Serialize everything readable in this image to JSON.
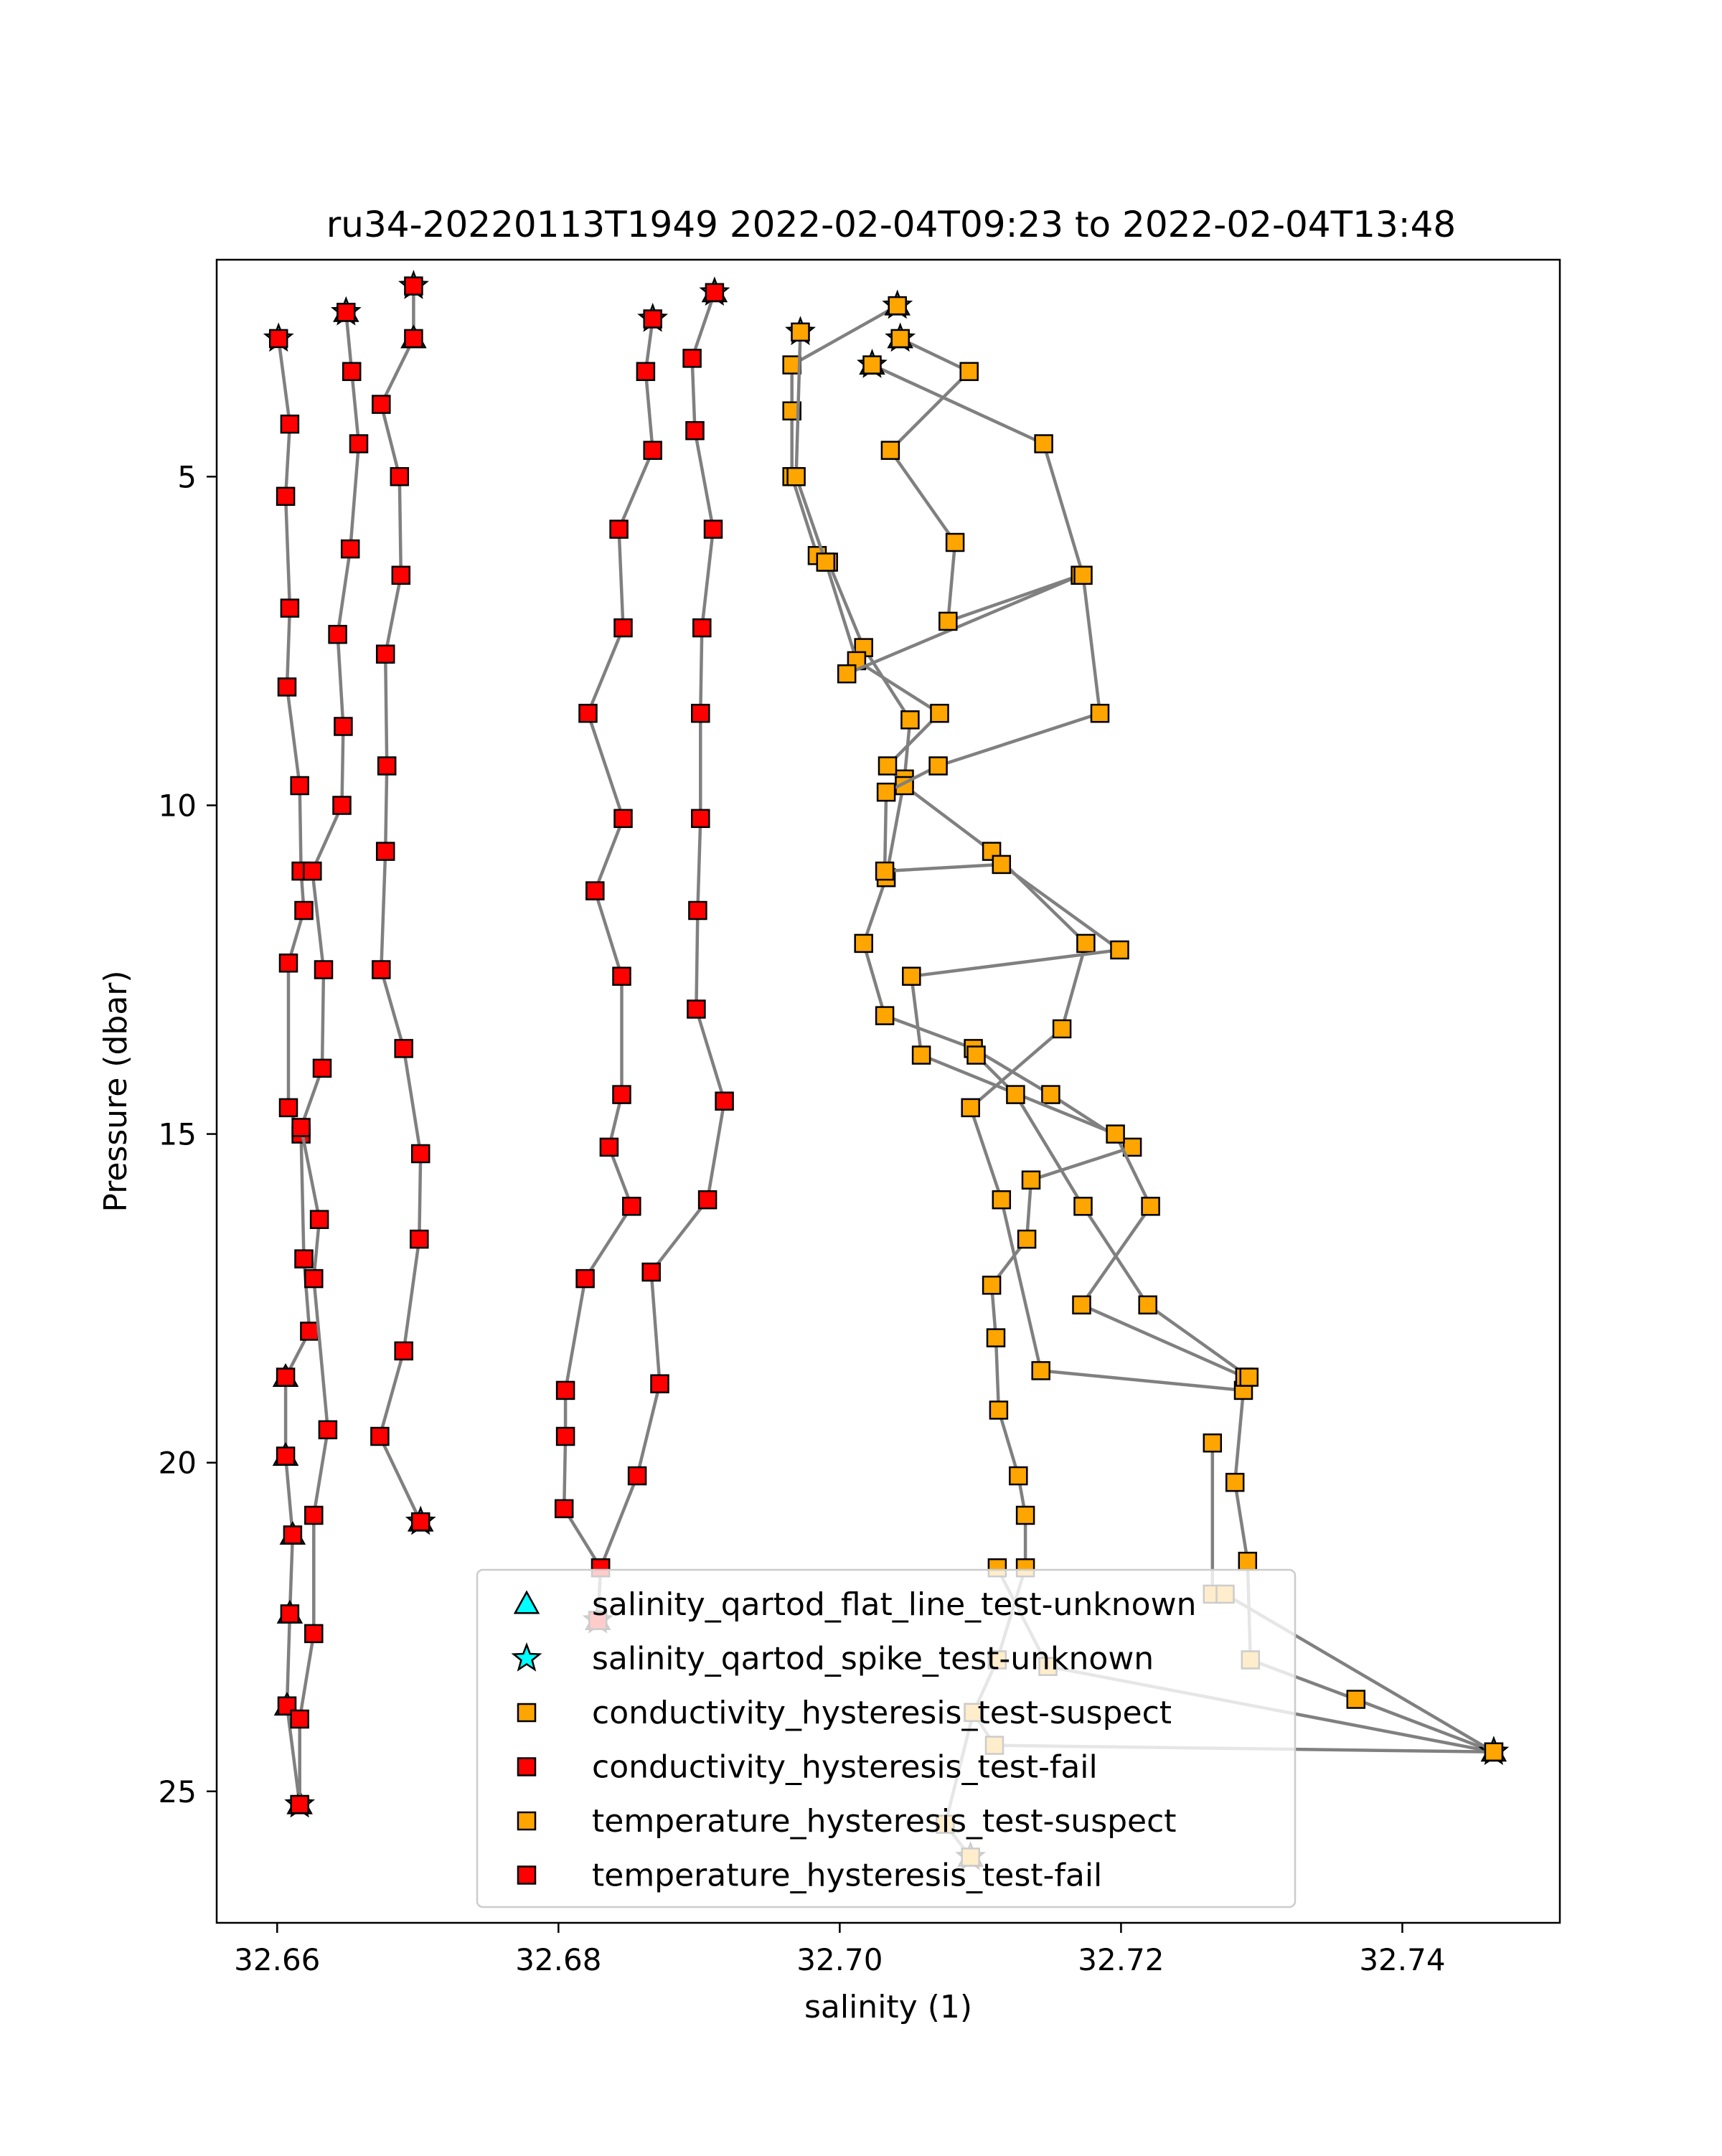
{
  "chart_data": {
    "type": "scatter",
    "title": "ru34-20220113T1949 2022-02-04T09:23 to 2022-02-04T13:48",
    "xlabel": "salinity (1)",
    "ylabel": "Pressure (dbar)",
    "xlim": [
      32.6557,
      32.7512
    ],
    "ylim": [
      27.0,
      1.7
    ],
    "y_inverted": true,
    "grid": false,
    "xticks": [
      32.66,
      32.68,
      32.7,
      32.72,
      32.74
    ],
    "xtick_labels": [
      "32.66",
      "32.68",
      "32.70",
      "32.72",
      "32.74"
    ],
    "yticks": [
      5,
      10,
      15,
      20,
      25
    ],
    "ytick_labels": [
      "5",
      "10",
      "15",
      "20",
      "25"
    ],
    "legend_position": "lower center",
    "line_color": "#808080",
    "colors": {
      "unknown_marker": "#00ffff",
      "suspect": "#ffa500",
      "fail": "#ff0000",
      "edge": "#000000"
    },
    "legend": [
      {
        "label": "salinity_qartod_flat_line_test-unknown",
        "marker": "triangle",
        "color": "#00ffff"
      },
      {
        "label": "salinity_qartod_spike_test-unknown",
        "marker": "star",
        "color": "#00ffff"
      },
      {
        "label": "conductivity_hysteresis_test-suspect",
        "marker": "square",
        "color": "#ffa500"
      },
      {
        "label": "conductivity_hysteresis_test-fail",
        "marker": "square",
        "color": "#ff0000"
      },
      {
        "label": "temperature_hysteresis_test-suspect",
        "marker": "square",
        "color": "#ffa500"
      },
      {
        "label": "temperature_hysteresis_test-fail",
        "marker": "square",
        "color": "#ff0000"
      }
    ],
    "profiles": [
      {
        "color": "#ff0000",
        "points": [
          [
            32.6601,
            2.9
          ],
          [
            32.6609,
            4.2
          ],
          [
            32.6606,
            5.3
          ],
          [
            32.6609,
            7.0
          ],
          [
            32.6607,
            8.2
          ],
          [
            32.6616,
            9.7
          ],
          [
            32.6617,
            11.0
          ],
          [
            32.6619,
            11.6
          ],
          [
            32.6608,
            12.4
          ],
          [
            32.6608,
            14.6
          ],
          [
            32.6617,
            15.0
          ],
          [
            32.6619,
            16.9
          ],
          [
            32.6623,
            18.0
          ],
          [
            32.6606,
            18.7
          ],
          [
            32.6606,
            19.9
          ],
          [
            32.6611,
            21.1
          ],
          [
            32.6609,
            22.3
          ],
          [
            32.6607,
            23.7
          ],
          [
            32.6616,
            25.2
          ]
        ],
        "markers_star": [
          [
            32.6601,
            2.9
          ],
          [
            32.6616,
            25.2
          ]
        ],
        "markers_triangle": [
          [
            32.6606,
            18.7
          ],
          [
            32.6606,
            19.9
          ],
          [
            32.6611,
            21.1
          ],
          [
            32.6609,
            22.3
          ],
          [
            32.6607,
            23.7
          ],
          [
            32.6616,
            25.2
          ]
        ]
      },
      {
        "color": "#ff0000",
        "points": [
          [
            32.6649,
            2.5
          ],
          [
            32.6653,
            3.4
          ],
          [
            32.6658,
            4.5
          ],
          [
            32.6652,
            6.1
          ],
          [
            32.6643,
            7.4
          ],
          [
            32.6647,
            8.8
          ],
          [
            32.6646,
            10.0
          ],
          [
            32.6625,
            11.0
          ],
          [
            32.6633,
            12.5
          ],
          [
            32.6632,
            14.0
          ],
          [
            32.6617,
            14.9
          ],
          [
            32.663,
            16.3
          ],
          [
            32.6626,
            17.2
          ],
          [
            32.6636,
            19.5
          ],
          [
            32.6626,
            20.8
          ],
          [
            32.6626,
            22.6
          ],
          [
            32.6616,
            23.9
          ],
          [
            32.6616,
            25.2
          ]
        ],
        "markers_star": [
          [
            32.6649,
            2.5
          ]
        ],
        "markers_triangle": [
          [
            32.6649,
            2.5
          ]
        ]
      },
      {
        "color": "#ff0000",
        "points": [
          [
            32.6697,
            2.1
          ],
          [
            32.6697,
            2.9
          ],
          [
            32.6674,
            3.9
          ],
          [
            32.6687,
            5.0
          ],
          [
            32.6688,
            6.5
          ],
          [
            32.6677,
            7.7
          ],
          [
            32.6678,
            9.4
          ],
          [
            32.6677,
            10.7
          ],
          [
            32.6674,
            12.5
          ],
          [
            32.669,
            13.7
          ],
          [
            32.6702,
            15.3
          ],
          [
            32.6701,
            16.6
          ],
          [
            32.669,
            18.3
          ],
          [
            32.6673,
            19.6
          ],
          [
            32.6702,
            20.9
          ]
        ],
        "markers_star": [
          [
            32.6697,
            2.1
          ],
          [
            32.6702,
            20.9
          ]
        ],
        "markers_triangle": [
          [
            32.6697,
            2.9
          ],
          [
            32.6702,
            20.9
          ]
        ]
      },
      {
        "color": "#ff0000",
        "points": [
          [
            32.6867,
            2.6
          ],
          [
            32.6862,
            3.4
          ],
          [
            32.6867,
            4.6
          ],
          [
            32.6843,
            5.8
          ],
          [
            32.6846,
            7.3
          ],
          [
            32.6821,
            8.6
          ],
          [
            32.6846,
            10.2
          ],
          [
            32.6826,
            11.3
          ],
          [
            32.6845,
            12.6
          ],
          [
            32.6845,
            14.4
          ],
          [
            32.6836,
            15.2
          ],
          [
            32.6852,
            16.1
          ],
          [
            32.6819,
            17.2
          ],
          [
            32.6805,
            18.9
          ],
          [
            32.6805,
            19.6
          ],
          [
            32.6804,
            20.7
          ],
          [
            32.683,
            21.6
          ],
          [
            32.6828,
            22.4
          ]
        ],
        "markers_star": [
          [
            32.6867,
            2.6
          ],
          [
            32.6828,
            22.4
          ]
        ],
        "markers_triangle": [
          [
            32.6828,
            22.4
          ]
        ]
      },
      {
        "color": "#ff0000",
        "points": [
          [
            32.6911,
            2.2
          ],
          [
            32.6895,
            3.2
          ],
          [
            32.6897,
            4.3
          ],
          [
            32.691,
            5.8
          ],
          [
            32.6902,
            7.3
          ],
          [
            32.6901,
            8.6
          ],
          [
            32.6901,
            10.2
          ],
          [
            32.6899,
            11.6
          ],
          [
            32.6898,
            13.1
          ],
          [
            32.6918,
            14.5
          ],
          [
            32.6906,
            16.0
          ],
          [
            32.6866,
            17.1
          ],
          [
            32.6872,
            18.8
          ],
          [
            32.6856,
            20.2
          ],
          [
            32.683,
            21.6
          ],
          [
            32.6828,
            22.4
          ]
        ],
        "markers_star": [
          [
            32.6911,
            2.2
          ]
        ],
        "markers_triangle": [
          [
            32.6911,
            2.2
          ]
        ]
      },
      {
        "color": "#ffa500",
        "points": [
          [
            32.7041,
            2.4
          ],
          [
            32.6966,
            3.3
          ],
          [
            32.6966,
            4.0
          ],
          [
            32.6966,
            5.0
          ],
          [
            32.6984,
            6.2
          ],
          [
            32.6992,
            6.3
          ],
          [
            32.7017,
            7.6
          ],
          [
            32.705,
            8.7
          ],
          [
            32.7046,
            9.6
          ],
          [
            32.7033,
            11.1
          ],
          [
            32.7017,
            12.1
          ],
          [
            32.7032,
            13.2
          ],
          [
            32.7095,
            13.7
          ],
          [
            32.715,
            14.4
          ],
          [
            32.7208,
            15.2
          ],
          [
            32.7136,
            15.7
          ],
          [
            32.7133,
            16.6
          ],
          [
            32.7108,
            17.3
          ],
          [
            32.7111,
            18.1
          ],
          [
            32.7113,
            19.2
          ],
          [
            32.7127,
            20.2
          ],
          [
            32.7132,
            20.8
          ],
          [
            32.7132,
            21.6
          ],
          [
            32.7112,
            23.0
          ],
          [
            32.7095,
            23.8
          ],
          [
            32.7075,
            25.5
          ],
          [
            32.7093,
            26.0
          ]
        ],
        "markers_star": [
          [
            32.7041,
            2.4
          ],
          [
            32.7093,
            26.0
          ]
        ],
        "markers_triangle": [
          [
            32.7041,
            2.4
          ],
          [
            32.7093,
            26.0
          ]
        ]
      },
      {
        "color": "#ffa500",
        "points": [
          [
            32.6972,
            2.8
          ],
          [
            32.6969,
            5.0
          ],
          [
            32.699,
            6.3
          ],
          [
            32.7012,
            7.8
          ],
          [
            32.7071,
            8.6
          ],
          [
            32.7034,
            9.4
          ],
          [
            32.7046,
            9.7
          ],
          [
            32.7108,
            10.7
          ],
          [
            32.7175,
            12.1
          ],
          [
            32.7158,
            13.4
          ],
          [
            32.7093,
            14.6
          ],
          [
            32.7115,
            16.0
          ],
          [
            32.7143,
            18.6
          ],
          [
            32.7287,
            18.9
          ],
          [
            32.7281,
            20.3
          ],
          [
            32.729,
            21.5
          ],
          [
            32.7292,
            23.0
          ],
          [
            32.7367,
            23.6
          ],
          [
            32.7465,
            24.4
          ],
          [
            32.7148,
            23.1
          ],
          [
            32.7112,
            21.6
          ]
        ],
        "markers_star": [
          [
            32.6972,
            2.8
          ],
          [
            32.7465,
            24.4
          ]
        ],
        "markers_triangle": [
          [
            32.7465,
            24.4
          ]
        ]
      },
      {
        "color": "#ffa500",
        "points": [
          [
            32.7043,
            2.9
          ],
          [
            32.7092,
            3.4
          ],
          [
            32.7036,
            4.6
          ],
          [
            32.7082,
            6.0
          ],
          [
            32.7077,
            7.2
          ],
          [
            32.7171,
            6.5
          ],
          [
            32.7005,
            8.0
          ]
        ],
        "markers_star": [
          [
            32.7043,
            2.9
          ]
        ],
        "markers_triangle": [
          [
            32.7043,
            2.9
          ]
        ]
      },
      {
        "color": "#ffa500",
        "points": [
          [
            32.7023,
            3.3
          ],
          [
            32.7145,
            4.5
          ],
          [
            32.7173,
            6.5
          ],
          [
            32.7185,
            8.6
          ],
          [
            32.707,
            9.4
          ],
          [
            32.7033,
            9.8
          ],
          [
            32.7032,
            11.0
          ],
          [
            32.7115,
            10.9
          ],
          [
            32.7199,
            12.2
          ],
          [
            32.7051,
            12.6
          ],
          [
            32.7058,
            13.8
          ],
          [
            32.7196,
            15.0
          ],
          [
            32.7221,
            16.1
          ],
          [
            32.7172,
            17.6
          ],
          [
            32.7288,
            18.7
          ],
          [
            32.7291,
            18.7
          ],
          [
            32.7219,
            17.6
          ],
          [
            32.7173,
            16.1
          ],
          [
            32.7125,
            14.4
          ],
          [
            32.7097,
            13.8
          ]
        ],
        "markers_star": [
          [
            32.7023,
            3.3
          ]
        ],
        "markers_triangle": [
          [
            32.7023,
            3.3
          ]
        ]
      },
      {
        "color": "#ffa500",
        "points": [
          [
            32.7265,
            19.7
          ],
          [
            32.7265,
            22.0
          ],
          [
            32.7274,
            22.0
          ],
          [
            32.7465,
            24.4
          ],
          [
            32.711,
            24.3
          ],
          [
            32.7095,
            23.8
          ]
        ],
        "markers_star": [],
        "markers_triangle": []
      }
    ]
  }
}
